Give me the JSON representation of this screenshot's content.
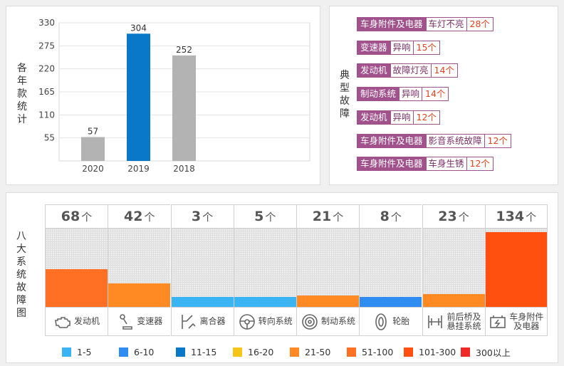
{
  "year_panel": {
    "title": "各年款统计",
    "chart_data": {
      "type": "bar",
      "categories": [
        "2020",
        "2019",
        "2018"
      ],
      "values": [
        57,
        304,
        252
      ],
      "colors": [
        "#b3b3b3",
        "#0a78c8",
        "#b3b3b3"
      ],
      "yticks": [
        55,
        110,
        165,
        220,
        275,
        330
      ],
      "ylim": [
        0,
        330
      ],
      "grid": true
    }
  },
  "typical_panel": {
    "title": "典型故障",
    "items": [
      {
        "category": "车身附件及电器",
        "symptom": "车灯不亮",
        "count": "28个"
      },
      {
        "category": "变速器",
        "symptom": "异响",
        "count": "15个"
      },
      {
        "category": "发动机",
        "symptom": "故障灯亮",
        "count": "14个"
      },
      {
        "category": "制动系统",
        "symptom": "异响",
        "count": "14个"
      },
      {
        "category": "发动机",
        "symptom": "异响",
        "count": "12个"
      },
      {
        "category": "车身附件及电器",
        "symptom": "影音系统故障",
        "count": "12个"
      },
      {
        "category": "车身附件及电器",
        "symptom": "车身生锈",
        "count": "12个"
      }
    ]
  },
  "system_panel": {
    "title": "八大系统故障图",
    "unit": "个",
    "chart_data": {
      "type": "bar",
      "max_reference": 140,
      "systems": [
        {
          "name": "发动机",
          "value": 68,
          "color": "#ff6f24",
          "icon": "engine-icon"
        },
        {
          "name": "变速器",
          "value": 42,
          "color": "#ff8a24",
          "icon": "gearshift-icon"
        },
        {
          "name": "离合器",
          "value": 3,
          "color": "#3ab4f2",
          "icon": "clutch-icon"
        },
        {
          "name": "转向系统",
          "value": 5,
          "color": "#3ab4f2",
          "icon": "steering-wheel-icon"
        },
        {
          "name": "制动系统",
          "value": 21,
          "color": "#ff8a24",
          "icon": "brake-disc-icon"
        },
        {
          "name": "轮胎",
          "value": 8,
          "color": "#2f8cf0",
          "icon": "tire-icon"
        },
        {
          "name": "前后桥及\n悬挂系统",
          "value": 23,
          "color": "#ff8a24",
          "icon": "axle-icon"
        },
        {
          "name": "车身附件\n及电器",
          "value": 134,
          "color": "#ff5010",
          "icon": "battery-icon"
        }
      ]
    },
    "legend": [
      {
        "label": "1-5",
        "color": "#3ab4f2"
      },
      {
        "label": "6-10",
        "color": "#2f8cf0"
      },
      {
        "label": "11-15",
        "color": "#0a78c8"
      },
      {
        "label": "16-20",
        "color": "#f5c518"
      },
      {
        "label": "21-50",
        "color": "#ff8a24"
      },
      {
        "label": "51-100",
        "color": "#ff6f24"
      },
      {
        "label": "101-300",
        "color": "#ff5010"
      },
      {
        "label": "300以上",
        "color": "#f02828"
      }
    ]
  }
}
